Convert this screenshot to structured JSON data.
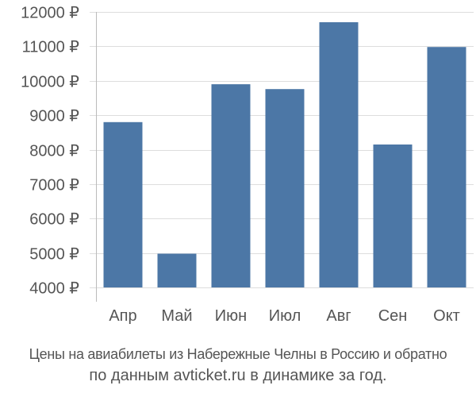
{
  "chart_data": {
    "type": "bar",
    "categories": [
      "Апр",
      "Май",
      "Июн",
      "Июл",
      "Авг",
      "Сен",
      "Окт"
    ],
    "values": [
      8800,
      4980,
      9900,
      9760,
      11700,
      8150,
      10980
    ],
    "y_tick_labels": [
      "4000 ₽",
      "5000 ₽",
      "6000 ₽",
      "7000 ₽",
      "8000 ₽",
      "9000 ₽",
      "10000 ₽",
      "11000 ₽",
      "12000 ₽"
    ],
    "y_ticks": [
      4000,
      5000,
      6000,
      7000,
      8000,
      9000,
      10000,
      11000,
      12000
    ],
    "ylim": [
      4000,
      12000
    ],
    "grid": true,
    "bar_color": "#4c77a6",
    "grid_color": "#dddddd",
    "axis_color": "#bbbbbb",
    "label_color": "#555555"
  },
  "caption": {
    "line1": "Цены на авиабилеты из Набережные Челны в Россию и обратно",
    "line2": "по данным avticket.ru в динамике за год."
  }
}
